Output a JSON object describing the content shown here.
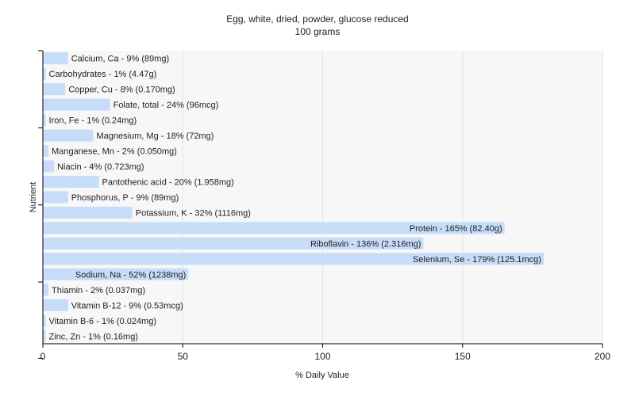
{
  "chart_data": {
    "type": "bar",
    "orientation": "horizontal",
    "title": "Egg, white, dried, powder, glucose reduced",
    "subtitle": "100 grams",
    "xlabel": "% Daily Value",
    "ylabel": "Nutrient",
    "xlim": [
      0,
      200
    ],
    "xticks": [
      0,
      50,
      100,
      150,
      200
    ],
    "grid": true,
    "categories": [
      "Calcium, Ca",
      "Carbohydrates",
      "Copper, Cu",
      "Folate, total",
      "Iron, Fe",
      "Magnesium, Mg",
      "Manganese, Mn",
      "Niacin",
      "Pantothenic acid",
      "Phosphorus, P",
      "Potassium, K",
      "Protein",
      "Riboflavin",
      "Selenium, Se",
      "Sodium, Na",
      "Thiamin",
      "Vitamin B-12",
      "Vitamin B-6",
      "Zinc, Zn"
    ],
    "values": [
      9,
      1,
      8,
      24,
      1,
      18,
      2,
      4,
      20,
      9,
      32,
      165,
      136,
      179,
      52,
      2,
      9,
      1,
      1
    ],
    "labels": [
      "Calcium, Ca - 9% (89mg)",
      "Carbohydrates - 1% (4.47g)",
      "Copper, Cu - 8% (0.170mg)",
      "Folate, total - 24% (96mcg)",
      "Iron, Fe - 1% (0.24mg)",
      "Magnesium, Mg - 18% (72mg)",
      "Manganese, Mn - 2% (0.050mg)",
      "Niacin - 4% (0.723mg)",
      "Pantothenic acid - 20% (1.958mg)",
      "Phosphorus, P - 9% (89mg)",
      "Potassium, K - 32% (1116mg)",
      "Protein - 165% (82.40g)",
      "Riboflavin - 136% (2.316mg)",
      "Selenium, Se - 179% (125.1mcg)",
      "Sodium, Na - 52% (1238mg)",
      "Thiamin - 2% (0.037mg)",
      "Vitamin B-12 - 9% (0.53mcg)",
      "Vitamin B-6 - 1% (0.024mg)",
      "Zinc, Zn - 1% (0.16mg)"
    ],
    "colors": {
      "bar": "#c6dcf8",
      "grid": "#e4e4e4",
      "axis": "#000000",
      "plot_bg": "#f7f7f7"
    }
  }
}
